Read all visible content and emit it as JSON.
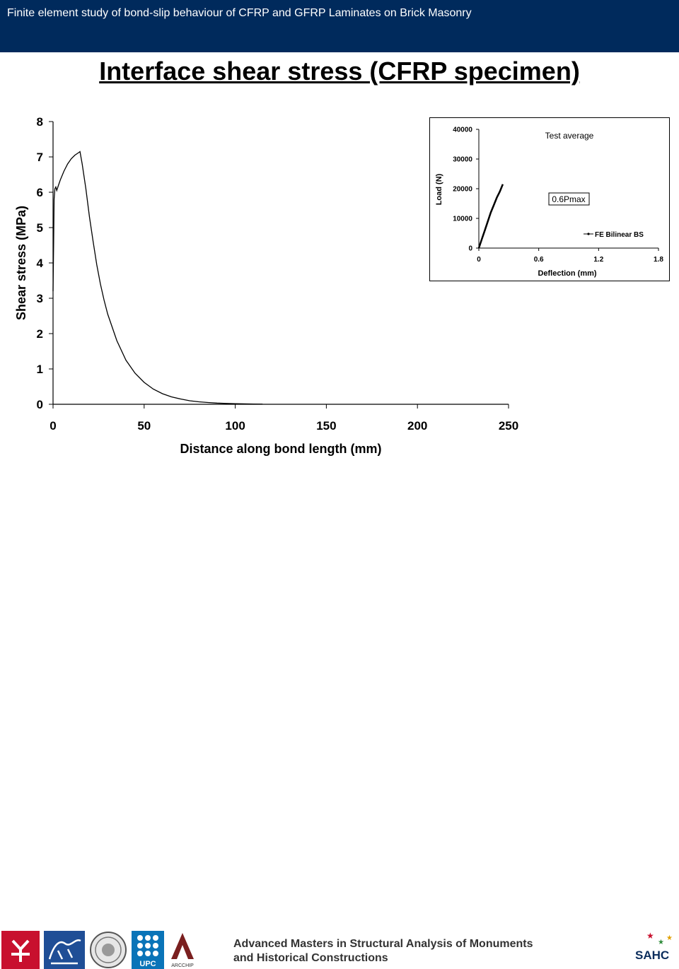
{
  "header": {
    "text": "Finite element study of bond-slip behaviour of CFRP and GFRP Laminates on Brick Masonry"
  },
  "slide": {
    "title": "Interface shear stress (CFRP specimen)"
  },
  "chart_data": [
    {
      "type": "line",
      "xlabel": "Distance along bond length (mm)",
      "ylabel": "Shear stress (MPa)",
      "xlim": [
        0,
        250
      ],
      "ylim": [
        0,
        8
      ],
      "xticks": [
        0,
        50,
        100,
        150,
        200,
        250
      ],
      "yticks": [
        0,
        1,
        2,
        3,
        4,
        5,
        6,
        7,
        8
      ],
      "grid": false,
      "series": [
        {
          "x": [
            0,
            0.3,
            0.6,
            1,
            1.5,
            2,
            3,
            4,
            6,
            8,
            10,
            12,
            14,
            14.8,
            16,
            18,
            20,
            22,
            24,
            26,
            28,
            30,
            35,
            40,
            45,
            50,
            55,
            60,
            65,
            70,
            75,
            80,
            85,
            90,
            95,
            100,
            105,
            110,
            115
          ],
          "y": [
            3.2,
            4.5,
            5.8,
            6.1,
            6.15,
            6.05,
            6.2,
            6.35,
            6.6,
            6.8,
            6.95,
            7.05,
            7.12,
            7.15,
            6.8,
            6.1,
            5.3,
            4.6,
            3.95,
            3.4,
            2.95,
            2.55,
            1.8,
            1.25,
            0.88,
            0.62,
            0.43,
            0.3,
            0.21,
            0.15,
            0.1,
            0.07,
            0.05,
            0.035,
            0.025,
            0.018,
            0.012,
            0.008,
            0.005
          ]
        }
      ]
    },
    {
      "type": "line",
      "title": "Test average",
      "xlabel": "Deflection (mm)",
      "ylabel": "Load (N)",
      "xlim": [
        0,
        1.8
      ],
      "ylim": [
        0,
        40000
      ],
      "xticks": [
        0,
        0.6,
        1.2,
        1.8
      ],
      "yticks": [
        0,
        10000,
        20000,
        30000,
        40000
      ],
      "annotation": "0.6Pmax",
      "legend": {
        "entry": "FE Bilinear BS",
        "position": "bottom-right"
      },
      "series": [
        {
          "name": "FE Bilinear BS",
          "x": [
            0,
            0.03,
            0.06,
            0.09,
            0.12,
            0.15,
            0.18,
            0.21,
            0.24
          ],
          "y": [
            0,
            3000,
            6000,
            9000,
            12000,
            14500,
            17000,
            19000,
            21500
          ]
        }
      ]
    }
  ],
  "footer": {
    "line1": "Advanced Masters in Structural Analysis of Monuments",
    "line2": "and Historical Constructions",
    "sahc": "SAHC",
    "logo_caption": "ARCCHIP",
    "upc_label": "UPC"
  },
  "colors": {
    "header_band": "#002a5c",
    "logo_red": "#c8102e",
    "logo_blue": "#1f4e96",
    "upc_blue": "#0a74b8"
  }
}
